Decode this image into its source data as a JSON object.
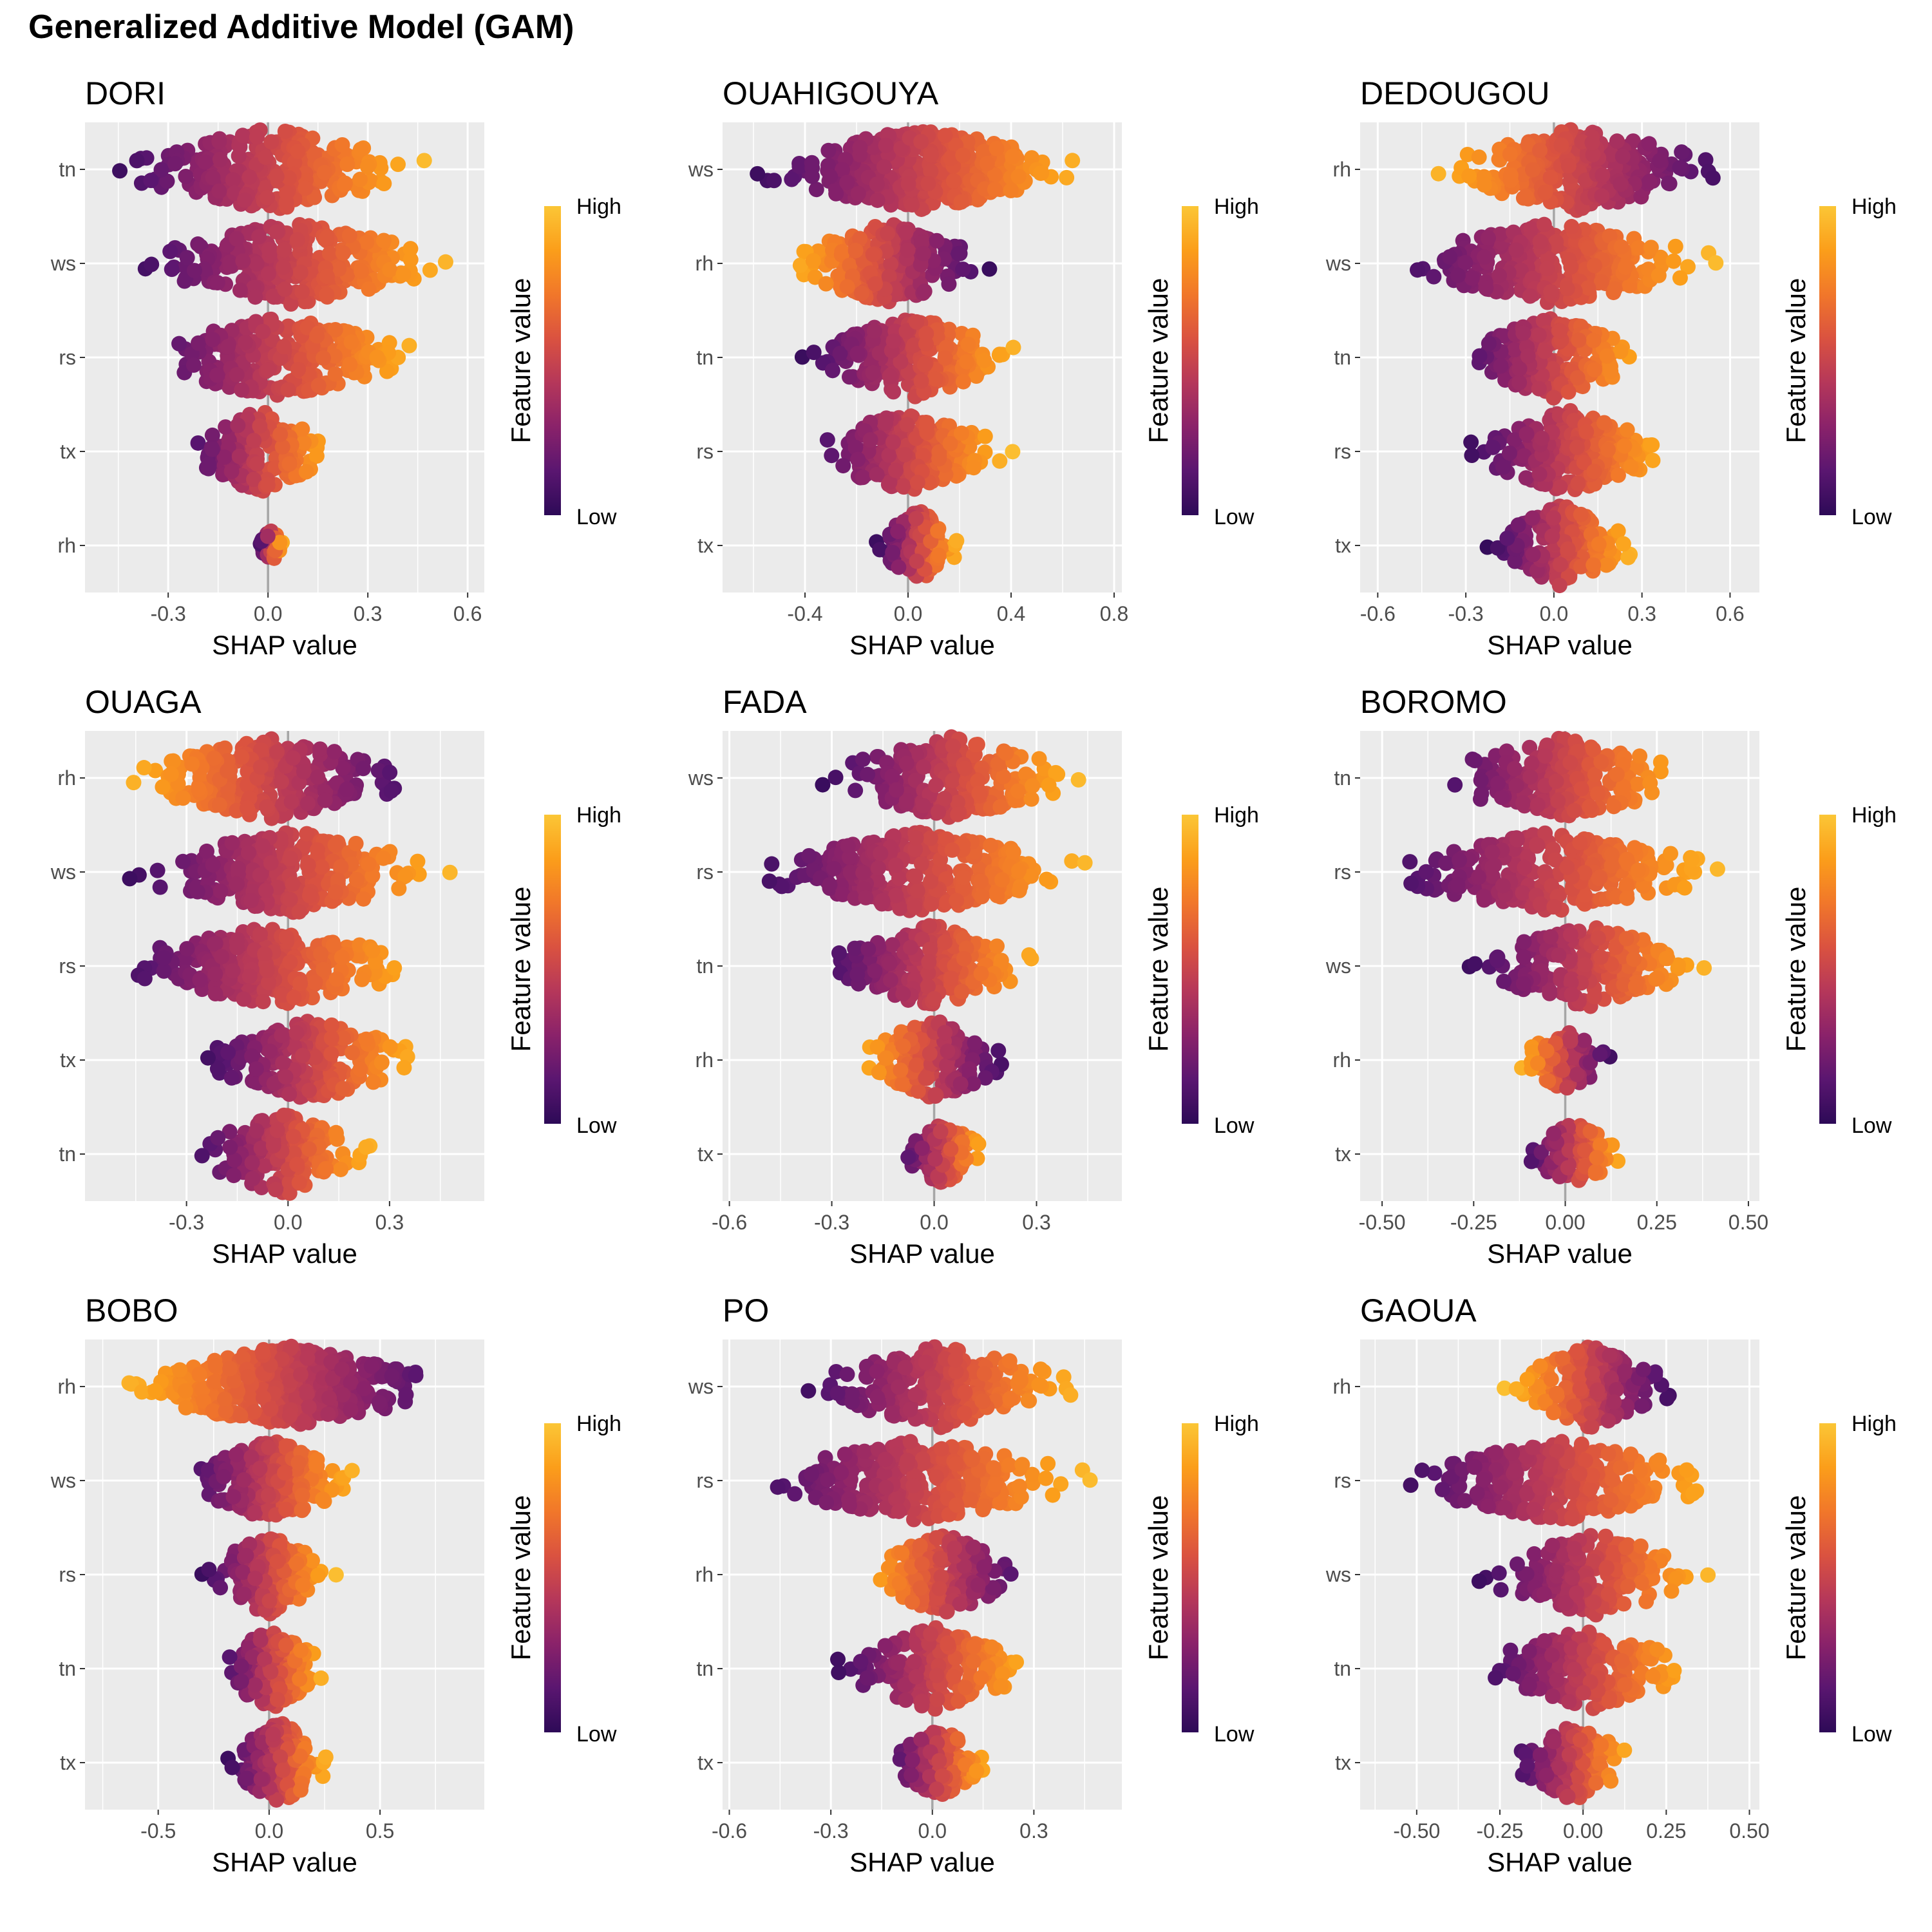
{
  "title": "Generalized Additive Model (GAM)",
  "colors": {
    "panel_bg": "#ebebeb",
    "grid": "#ffffff",
    "zero_line": "#a6a6a6",
    "palette": [
      "#2d0a57",
      "#5a1670",
      "#8a226a",
      "#b5375a",
      "#da5240",
      "#f1772a",
      "#fb9e1a",
      "#fbc636"
    ]
  },
  "chart_data": [
    {
      "type": "beeswarm",
      "panel_title": "DORI",
      "xlabel": "SHAP value",
      "ylabel": "",
      "xlim": [
        -0.55,
        0.65
      ],
      "x_ticks": [
        -0.3,
        0.0,
        0.3,
        0.6
      ],
      "x_tick_labels": [
        "-0.3",
        "0.0",
        "0.3",
        "0.6"
      ],
      "grid": true,
      "legend": {
        "title": "Feature value",
        "high_label": "High",
        "low_label": "Low",
        "position": "right"
      },
      "features": [
        {
          "name": "tn",
          "shap_min": -0.5,
          "shap_max": 0.51,
          "low_side": "left"
        },
        {
          "name": "ws",
          "shap_min": -0.45,
          "shap_max": 0.6,
          "low_side": "left"
        },
        {
          "name": "rs",
          "shap_min": -0.43,
          "shap_max": 0.5,
          "low_side": "left"
        },
        {
          "name": "tx",
          "shap_min": -0.28,
          "shap_max": 0.23,
          "low_side": "left"
        },
        {
          "name": "rh",
          "shap_min": -0.03,
          "shap_max": 0.05,
          "low_side": "left"
        }
      ]
    },
    {
      "type": "beeswarm",
      "panel_title": "OUAHIGOUYA",
      "xlabel": "SHAP value",
      "ylabel": "",
      "xlim": [
        -0.72,
        0.83
      ],
      "x_ticks": [
        -0.4,
        0.0,
        0.4,
        0.8
      ],
      "x_tick_labels": [
        "-0.4",
        "0.0",
        "0.4",
        "0.8"
      ],
      "grid": true,
      "legend": {
        "title": "Feature value",
        "high_label": "High",
        "low_label": "Low",
        "position": "right"
      },
      "features": [
        {
          "name": "ws",
          "shap_min": -0.66,
          "shap_max": 0.76,
          "low_side": "left"
        },
        {
          "name": "rh",
          "shap_min": -0.51,
          "shap_max": 0.35,
          "low_side": "right"
        },
        {
          "name": "tn",
          "shap_min": -0.45,
          "shap_max": 0.48,
          "low_side": "left"
        },
        {
          "name": "rs",
          "shap_min": -0.43,
          "shap_max": 0.43,
          "low_side": "left"
        },
        {
          "name": "tx",
          "shap_min": -0.14,
          "shap_max": 0.22,
          "low_side": "left"
        }
      ]
    },
    {
      "type": "beeswarm",
      "panel_title": "DEDOUGOU",
      "xlabel": "SHAP value",
      "ylabel": "",
      "xlim": [
        -0.66,
        0.7
      ],
      "x_ticks": [
        -0.6,
        -0.3,
        0.0,
        0.3,
        0.6
      ],
      "x_tick_labels": [
        "-0.6",
        "-0.3",
        "0.0",
        "0.3",
        "0.6"
      ],
      "grid": true,
      "legend": {
        "title": "Feature value",
        "high_label": "High",
        "low_label": "Low",
        "position": "right"
      },
      "features": [
        {
          "name": "rh",
          "shap_min": -0.47,
          "shap_max": 0.64,
          "low_side": "right"
        },
        {
          "name": "ws",
          "shap_min": -0.6,
          "shap_max": 0.6,
          "low_side": "left"
        },
        {
          "name": "tn",
          "shap_min": -0.37,
          "shap_max": 0.36,
          "low_side": "left"
        },
        {
          "name": "rs",
          "shap_min": -0.33,
          "shap_max": 0.43,
          "low_side": "left"
        },
        {
          "name": "tx",
          "shap_min": -0.24,
          "shap_max": 0.3,
          "low_side": "left"
        }
      ]
    },
    {
      "type": "beeswarm",
      "panel_title": "OUAGA",
      "xlabel": "SHAP value",
      "ylabel": "",
      "xlim": [
        -0.6,
        0.58
      ],
      "x_ticks": [
        -0.3,
        0.0,
        0.3
      ],
      "x_tick_labels": [
        "-0.3",
        "0.0",
        "0.3"
      ],
      "grid": true,
      "legend": {
        "title": "Feature value",
        "high_label": "High",
        "low_label": "Low",
        "position": "right"
      },
      "features": [
        {
          "name": "rh",
          "shap_min": -0.53,
          "shap_max": 0.43,
          "low_side": "right"
        },
        {
          "name": "ws",
          "shap_min": -0.52,
          "shap_max": 0.54,
          "low_side": "left"
        },
        {
          "name": "rs",
          "shap_min": -0.55,
          "shap_max": 0.45,
          "low_side": "left"
        },
        {
          "name": "tx",
          "shap_min": -0.29,
          "shap_max": 0.43,
          "low_side": "left"
        },
        {
          "name": "tn",
          "shap_min": -0.32,
          "shap_max": 0.29,
          "low_side": "left"
        }
      ]
    },
    {
      "type": "beeswarm",
      "panel_title": "FADA",
      "xlabel": "SHAP value",
      "ylabel": "",
      "xlim": [
        -0.62,
        0.55
      ],
      "x_ticks": [
        -0.6,
        -0.3,
        0.0,
        0.3
      ],
      "x_tick_labels": [
        "-0.6",
        "-0.3",
        "0.0",
        "0.3"
      ],
      "grid": true,
      "legend": {
        "title": "Feature value",
        "high_label": "High",
        "low_label": "Low",
        "position": "right"
      },
      "features": [
        {
          "name": "ws",
          "shap_min": -0.36,
          "shap_max": 0.46,
          "low_side": "left"
        },
        {
          "name": "rs",
          "shap_min": -0.58,
          "shap_max": 0.5,
          "low_side": "left"
        },
        {
          "name": "tn",
          "shap_min": -0.37,
          "shap_max": 0.36,
          "low_side": "left"
        },
        {
          "name": "rh",
          "shap_min": -0.25,
          "shap_max": 0.24,
          "low_side": "right"
        },
        {
          "name": "tx",
          "shap_min": -0.12,
          "shap_max": 0.17,
          "low_side": "left"
        }
      ]
    },
    {
      "type": "beeswarm",
      "panel_title": "BOROMO",
      "xlabel": "SHAP value",
      "ylabel": "",
      "xlim": [
        -0.56,
        0.53
      ],
      "x_ticks": [
        -0.5,
        -0.25,
        0.0,
        0.25,
        0.5
      ],
      "x_tick_labels": [
        "-0.50",
        "-0.25",
        "0.00",
        "0.25",
        "0.50"
      ],
      "grid": true,
      "legend": {
        "title": "Feature value",
        "high_label": "High",
        "low_label": "Low",
        "position": "right"
      },
      "features": [
        {
          "name": "tn",
          "shap_min": -0.4,
          "shap_max": 0.39,
          "low_side": "left"
        },
        {
          "name": "rs",
          "shap_min": -0.54,
          "shap_max": 0.47,
          "low_side": "left"
        },
        {
          "name": "ws",
          "shap_min": -0.3,
          "shap_max": 0.43,
          "low_side": "left"
        },
        {
          "name": "rh",
          "shap_min": -0.14,
          "shap_max": 0.14,
          "low_side": "right"
        },
        {
          "name": "tx",
          "shap_min": -0.13,
          "shap_max": 0.18,
          "low_side": "left"
        }
      ]
    },
    {
      "type": "beeswarm",
      "panel_title": "BOBO",
      "xlabel": "SHAP value",
      "ylabel": "",
      "xlim": [
        -0.83,
        0.97
      ],
      "x_ticks": [
        -0.5,
        0.0,
        0.5
      ],
      "x_tick_labels": [
        "-0.5",
        "0.0",
        "0.5"
      ],
      "grid": true,
      "legend": {
        "title": "Feature value",
        "high_label": "High",
        "low_label": "Low",
        "position": "right"
      },
      "features": [
        {
          "name": "rh",
          "shap_min": -0.75,
          "shap_max": 0.9,
          "low_side": "right"
        },
        {
          "name": "ws",
          "shap_min": -0.42,
          "shap_max": 0.44,
          "low_side": "left"
        },
        {
          "name": "rs",
          "shap_min": -0.33,
          "shap_max": 0.32,
          "low_side": "left"
        },
        {
          "name": "tn",
          "shap_min": -0.25,
          "shap_max": 0.28,
          "low_side": "left"
        },
        {
          "name": "tx",
          "shap_min": -0.21,
          "shap_max": 0.3,
          "low_side": "left"
        }
      ]
    },
    {
      "type": "beeswarm",
      "panel_title": "PO",
      "xlabel": "SHAP value",
      "ylabel": "",
      "xlim": [
        -0.62,
        0.56
      ],
      "x_ticks": [
        -0.6,
        -0.3,
        0.0,
        0.3
      ],
      "x_tick_labels": [
        "-0.6",
        "-0.3",
        "0.0",
        "0.3"
      ],
      "grid": true,
      "legend": {
        "title": "Feature value",
        "high_label": "High",
        "low_label": "Low",
        "position": "right"
      },
      "features": [
        {
          "name": "ws",
          "shap_min": -0.43,
          "shap_max": 0.49,
          "low_side": "left"
        },
        {
          "name": "rs",
          "shap_min": -0.58,
          "shap_max": 0.51,
          "low_side": "left"
        },
        {
          "name": "rh",
          "shap_min": -0.24,
          "shap_max": 0.31,
          "low_side": "right"
        },
        {
          "name": "tn",
          "shap_min": -0.32,
          "shap_max": 0.33,
          "low_side": "left"
        },
        {
          "name": "tx",
          "shap_min": -0.15,
          "shap_max": 0.19,
          "low_side": "left"
        }
      ]
    },
    {
      "type": "beeswarm",
      "panel_title": "GAOUA",
      "xlabel": "SHAP value",
      "ylabel": "",
      "xlim": [
        -0.67,
        0.53
      ],
      "x_ticks": [
        -0.5,
        -0.25,
        0.0,
        0.25,
        0.5
      ],
      "x_tick_labels": [
        "-0.50",
        "-0.25",
        "0.00",
        "0.25",
        "0.50"
      ],
      "grid": true,
      "legend": {
        "title": "Feature value",
        "high_label": "High",
        "low_label": "Low",
        "position": "right"
      },
      "features": [
        {
          "name": "rh",
          "shap_min": -0.25,
          "shap_max": 0.3,
          "low_side": "right"
        },
        {
          "name": "rs",
          "shap_min": -0.6,
          "shap_max": 0.47,
          "low_side": "left"
        },
        {
          "name": "ws",
          "shap_min": -0.35,
          "shap_max": 0.42,
          "low_side": "left"
        },
        {
          "name": "tn",
          "shap_min": -0.34,
          "shap_max": 0.37,
          "low_side": "left"
        },
        {
          "name": "tx",
          "shap_min": -0.23,
          "shap_max": 0.17,
          "low_side": "left"
        }
      ]
    }
  ]
}
